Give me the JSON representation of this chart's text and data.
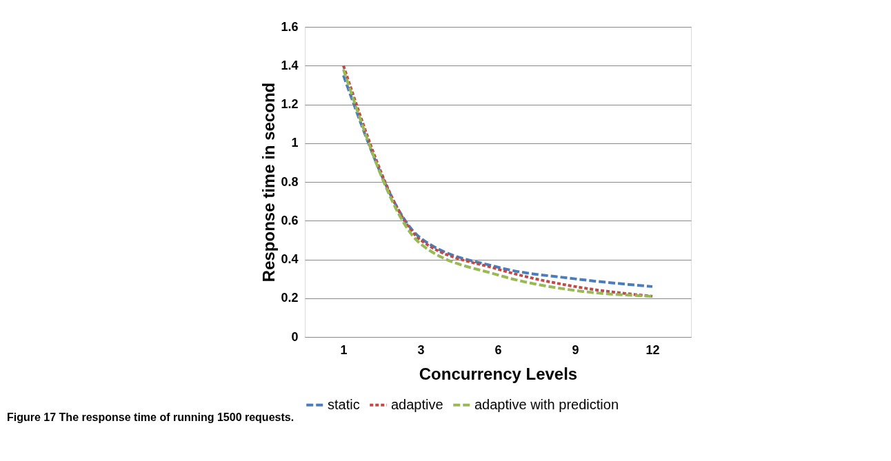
{
  "chart_data": {
    "type": "line",
    "xlabel": "Concurrency Levels",
    "ylabel": "Response time in second",
    "categories": [
      "1",
      "3",
      "6",
      "9",
      "12"
    ],
    "series": [
      {
        "name": "static",
        "color": "#4a7ebb",
        "line_style": "dashed",
        "values": [
          1.35,
          0.51,
          0.36,
          0.3,
          0.26
        ]
      },
      {
        "name": "adaptive",
        "color": "#be4b48",
        "line_style": "dotted",
        "values": [
          1.4,
          0.5,
          0.35,
          0.26,
          0.21
        ]
      },
      {
        "name": "adaptive with prediction",
        "color": "#98b954",
        "line_style": "dashed",
        "values": [
          1.38,
          0.48,
          0.32,
          0.24,
          0.21
        ]
      }
    ],
    "ylim": [
      0,
      1.6
    ],
    "yticks": [
      0,
      0.2,
      0.4,
      0.6,
      0.8,
      1,
      1.2,
      1.4,
      1.6
    ],
    "grid": "y",
    "legend": "bottom",
    "marker": "none",
    "annotations": [
      "Figure 17 The response time of running 1500 requests."
    ]
  }
}
